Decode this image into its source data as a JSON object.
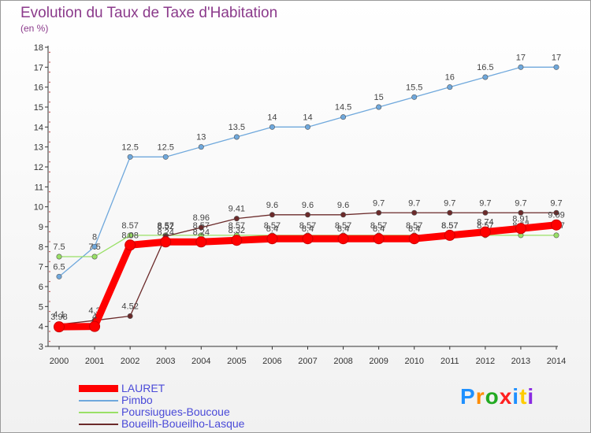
{
  "header": {
    "title": "Evolution du Taux de Taxe d'Habitation",
    "unit": "(en %)"
  },
  "logo": {
    "text": "Proxiti",
    "colors": [
      "#1e90ff",
      "#ff8c00",
      "#22aa22",
      "#ff2020",
      "#1e90ff",
      "#ffcc00",
      "#8a2be2"
    ]
  },
  "chart_data": {
    "type": "line",
    "title": "Evolution du Taux de Taxe d'Habitation",
    "ylabel": "(en %)",
    "x": [
      "2000",
      "2001",
      "2002",
      "2003",
      "2004",
      "2005",
      "2006",
      "2007",
      "2008",
      "2009",
      "2010",
      "2011",
      "2012",
      "2013",
      "2014"
    ],
    "ylim": [
      3,
      18
    ],
    "yticks": [
      3,
      4,
      5,
      6,
      7,
      8,
      9,
      10,
      11,
      12,
      13,
      14,
      15,
      16,
      17,
      18
    ],
    "grid": false,
    "legend_position": "bottom-left",
    "series": [
      {
        "name": "LAURET",
        "color": "#ff0000",
        "values": [
          3.98,
          4,
          8.08,
          8.24,
          8.24,
          8.32,
          8.4,
          8.4,
          8.4,
          8.4,
          8.4,
          8.57,
          8.74,
          8.91,
          9.09
        ],
        "labels": [
          "3.98",
          "4",
          "8.08",
          "8.24",
          "8.24",
          "8.32",
          "8.4",
          "8.4",
          "8.4",
          "8.4",
          "8.4",
          "8.57",
          "8.74",
          "8.91",
          "9.09"
        ]
      },
      {
        "name": "Pimbo",
        "color": "#6fa8dc",
        "values": [
          6.5,
          8,
          12.5,
          12.5,
          13,
          13.5,
          14,
          14,
          14.5,
          15,
          15.5,
          16,
          16.5,
          17,
          17
        ],
        "labels": [
          "6.5",
          "8",
          "12.5",
          "12.5",
          "13",
          "13.5",
          "14",
          "14",
          "14.5",
          "15",
          "15.5",
          "16",
          "16.5",
          "17",
          "17"
        ]
      },
      {
        "name": "Poursiugues-Boucoue",
        "color": "#99e066",
        "values": [
          7.5,
          7.5,
          8.57,
          8.57,
          8.57,
          8.57,
          8.57,
          8.57,
          8.57,
          8.57,
          8.57,
          8.57,
          8.57,
          8.57,
          8.57
        ],
        "labels": [
          "7.5",
          "7.5",
          "8.57",
          "8.57",
          "8.57",
          "8.57",
          "8.57",
          "8.57",
          "8.57",
          "8.57",
          "8.57",
          "8.57",
          "8.57",
          "8.57",
          "8.57"
        ]
      },
      {
        "name": "Boueilh-Boueilho-Lasque",
        "color": "#6b2a2a",
        "values": [
          4.1,
          4.3,
          4.52,
          8.52,
          8.96,
          9.41,
          9.6,
          9.6,
          9.6,
          9.7,
          9.7,
          9.7,
          9.7,
          9.7,
          9.7
        ],
        "labels": [
          "4.1",
          "4.3",
          "4.52",
          "8.52",
          "8.96",
          "9.41",
          "9.6",
          "9.6",
          "9.6",
          "9.7",
          "9.7",
          "9.7",
          "9.7",
          "9.7",
          "9.7"
        ]
      }
    ]
  }
}
